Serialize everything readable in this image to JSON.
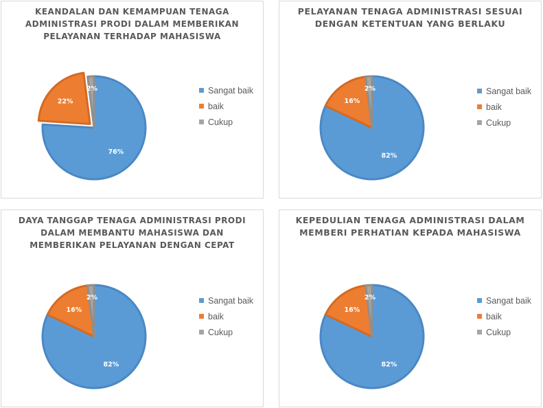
{
  "chart_data": [
    {
      "type": "pie",
      "title": "KEANDALAN DAN KEMAMPUAN TENAGA\nADMINISTRASI PRODI DALAM MEMBERIKAN\nPELAYANAN TERHADAP MAHASISWA",
      "categories": [
        "Sangat baik",
        "baik",
        "Cukup"
      ],
      "values": [
        76,
        22,
        2
      ],
      "labels": [
        "76%",
        "22%",
        "2%"
      ],
      "exploded": "baik",
      "legend_position": "right"
    },
    {
      "type": "pie",
      "title": "PELAYANAN TENAGA ADMINISTRASI SESUAI\nDENGAN KETENTUAN YANG BERLAKU",
      "categories": [
        "Sangat baik",
        "baik",
        "Cukup"
      ],
      "values": [
        82,
        16,
        2
      ],
      "labels": [
        "82%",
        "16%",
        "2%"
      ],
      "exploded": "",
      "legend_position": "right"
    },
    {
      "type": "pie",
      "title": "DAYA TANGGAP TENAGA ADMINISTRASI PRODI\nDALAM MEMBANTU MAHASISWA DAN\nMEMBERIKAN PELAYANAN DENGAN CEPAT",
      "categories": [
        "Sangat baik",
        "baik",
        "Cukup"
      ],
      "values": [
        82,
        16,
        2
      ],
      "labels": [
        "82%",
        "16%",
        "2%"
      ],
      "exploded": "",
      "legend_position": "right"
    },
    {
      "type": "pie",
      "title": "KEPEDULIAN TENAGA ADMINISTRASI DALAM\nMEMBERI PERHATIAN KEPADA MAHASISWA",
      "categories": [
        "Sangat baik",
        "baik",
        "Cukup"
      ],
      "values": [
        82,
        16,
        2
      ],
      "labels": [
        "82%",
        "16%",
        "2%"
      ],
      "exploded": "",
      "legend_position": "right"
    }
  ],
  "colors": {
    "Sangat baik": "#5b9bd5",
    "baik": "#ed7d31",
    "Cukup": "#a5a5a5",
    "outline_Sangat baik": "#4a88c4",
    "outline_baik": "#d46a22",
    "outline_Cukup": "#8f8f8f"
  }
}
